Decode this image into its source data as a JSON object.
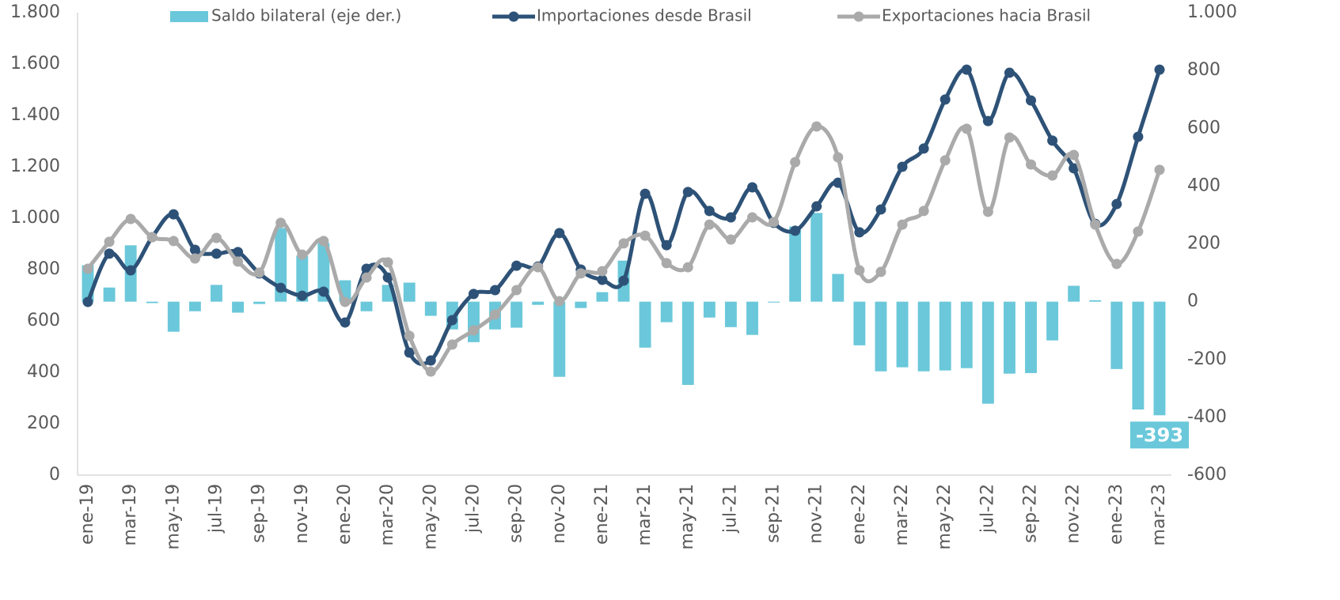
{
  "chart_data": {
    "type": "combo",
    "categories": [
      "ene-19",
      null,
      "mar-19",
      null,
      "may-19",
      null,
      "jul-19",
      null,
      "sep-19",
      null,
      "nov-19",
      null,
      "ene-20",
      null,
      "mar-20",
      null,
      "may-20",
      null,
      "jul-20",
      null,
      "sep-20",
      null,
      "nov-20",
      null,
      "ene-21",
      null,
      "mar-21",
      null,
      "may-21",
      null,
      "jul-21",
      null,
      "sep-21",
      null,
      "nov-21",
      null,
      "ene-22",
      null,
      "mar-22",
      null,
      "may-22",
      null,
      "jul-22",
      null,
      "sep-22",
      null,
      "nov-22",
      null,
      "ene-23",
      null,
      "mar-23"
    ],
    "series": [
      {
        "name": "Saldo bilateral (eje der.)",
        "type": "bar",
        "axis": "y2",
        "color": "#6ac8da",
        "values": [
          126,
          49,
          195,
          -5,
          -104,
          -33,
          58,
          -38,
          -8,
          255,
          159,
          203,
          74,
          -33,
          58,
          66,
          -49,
          -96,
          -140,
          -96,
          -90,
          -11,
          -260,
          -22,
          33,
          142,
          -159,
          -71,
          -288,
          -55,
          -88,
          -115,
          -3,
          260,
          307,
          96,
          -151,
          -241,
          -227,
          -241,
          -238,
          -230,
          -353,
          -249,
          -247,
          -134,
          55,
          5,
          -233,
          -373,
          -393
        ]
      },
      {
        "name": "Importaciones desde Brasil",
        "type": "line",
        "color": "#2e5277",
        "values": [
          674,
          862,
          797,
          926,
          1015,
          877,
          862,
          868,
          785,
          729,
          698,
          714,
          594,
          803,
          769,
          477,
          446,
          603,
          705,
          720,
          815,
          812,
          942,
          800,
          760,
          757,
          1095,
          895,
          1102,
          1028,
          1003,
          1120,
          982,
          951,
          1046,
          1138,
          945,
          1034,
          1200,
          1271,
          1462,
          1578,
          1378,
          1566,
          1458,
          1302,
          1194,
          978,
          1055,
          1317,
          1578
        ]
      },
      {
        "name": "Exportaciones hacia Brasil",
        "type": "line",
        "color": "#aaaaaa",
        "values": [
          803,
          908,
          997,
          926,
          911,
          843,
          923,
          831,
          788,
          982,
          858,
          911,
          674,
          769,
          828,
          542,
          403,
          508,
          563,
          625,
          720,
          809,
          677,
          785,
          794,
          902,
          932,
          825,
          809,
          975,
          917,
          1003,
          985,
          1218,
          1357,
          1237,
          797,
          791,
          975,
          1028,
          1225,
          1348,
          1025,
          1314,
          1209,
          1166,
          1246,
          975,
          822,
          948,
          1188
        ]
      }
    ],
    "ylim": [
      0,
      1800
    ],
    "yticks": [
      0,
      200,
      400,
      600,
      800,
      {
        "value": 1000,
        "label": "1.000"
      },
      {
        "value": 1200,
        "label": "1.200"
      },
      {
        "value": 1400,
        "label": "1.400"
      },
      {
        "value": 1600,
        "label": "1.600"
      },
      {
        "value": 1800,
        "label": "1.800"
      }
    ],
    "y2lim": [
      -600,
      1000
    ],
    "y2ticks": [
      -600,
      -400,
      -200,
      0,
      200,
      400,
      600,
      800,
      {
        "value": 1000,
        "label": "1.000"
      }
    ],
    "legend": "top"
  }
}
